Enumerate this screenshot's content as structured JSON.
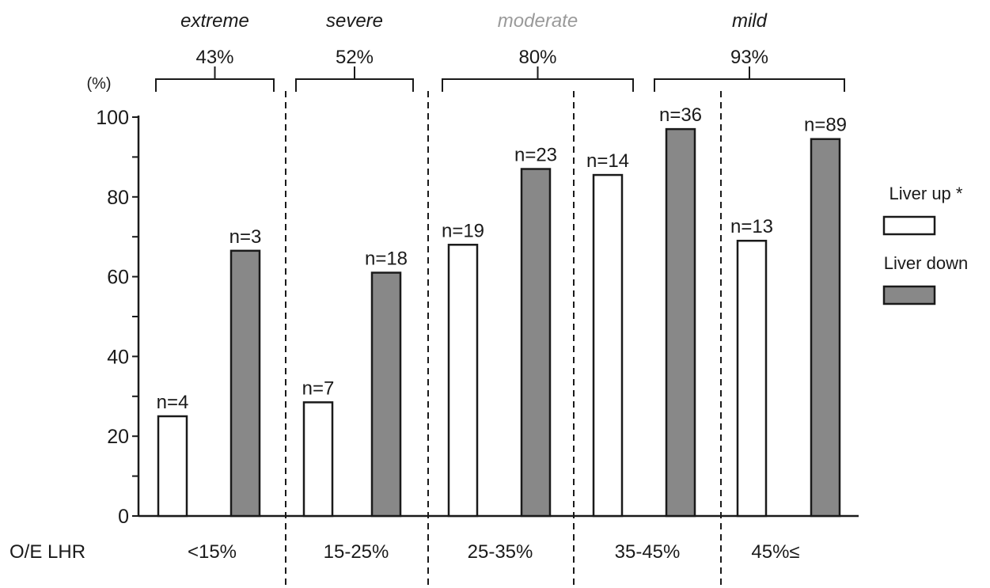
{
  "chart_data": {
    "type": "bar",
    "y_unit_label": "(%)",
    "ylim": [
      0,
      100
    ],
    "yticks": [
      0,
      20,
      40,
      60,
      80,
      100
    ],
    "x_axis_name": "O/E LHR",
    "categories": [
      "<15%",
      "15-25%",
      "25-35%",
      "35-45%",
      "45%≤"
    ],
    "series": [
      {
        "name": "Liver up *",
        "color": "#ffffff",
        "values": [
          25,
          28.5,
          68,
          85.5,
          69
        ],
        "labels": [
          "n=4",
          "n=7",
          "n=19",
          "n=14",
          "n=13"
        ]
      },
      {
        "name": "Liver down",
        "color": "#888888",
        "values": [
          66.5,
          61,
          87,
          97,
          94.5
        ],
        "labels": [
          "n=3",
          "n=18",
          "n=23",
          "n=36",
          "n=89"
        ]
      }
    ],
    "severity_groups": [
      {
        "name": "extreme",
        "value": "43%",
        "color": "#1a1a1a"
      },
      {
        "name": "severe",
        "value": "52%",
        "color": "#1a1a1a"
      },
      {
        "name": "moderate",
        "value": "80%",
        "color": "#9a9a9a"
      },
      {
        "name": "mild",
        "value": "93%",
        "color": "#1a1a1a"
      }
    ],
    "legend_position": "right",
    "grid": false
  }
}
